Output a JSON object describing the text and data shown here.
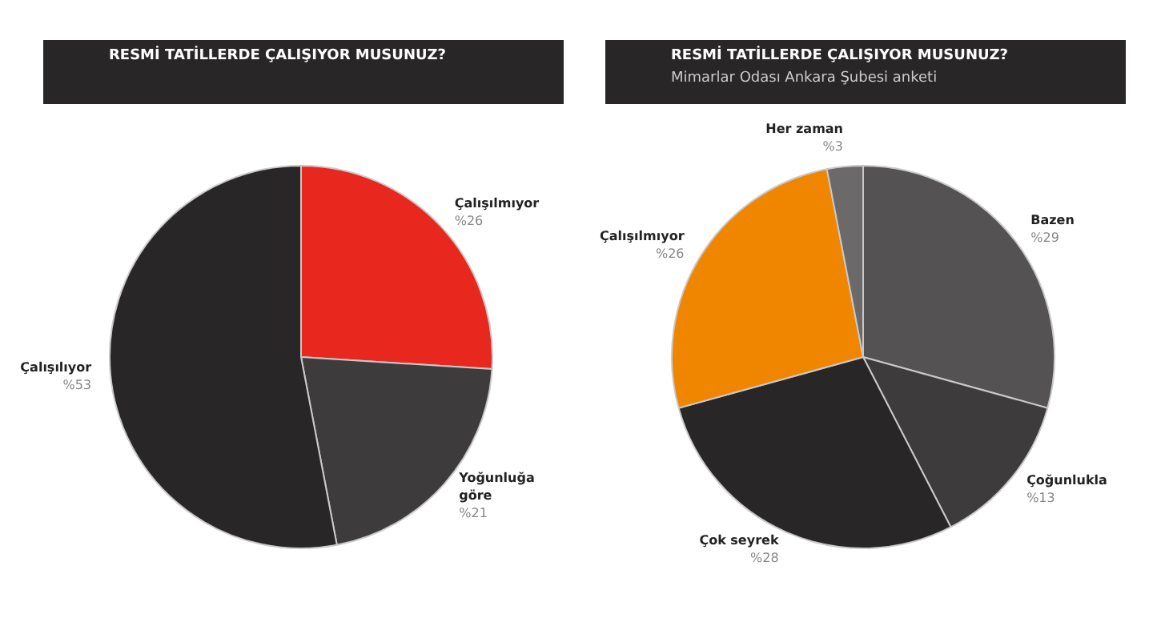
{
  "chart_data": [
    {
      "type": "pie",
      "title": "RESMİ TATİLLERDE ÇALIŞIYOR MUSUNUZ?",
      "categories": [
        "Çalışılmıyor",
        "Yoğunluğa göre",
        "Çalışılıyor"
      ],
      "values": [
        26,
        21,
        53
      ],
      "colors": [
        "#e8281e",
        "#3d3b3c",
        "#282627"
      ],
      "value_labels": [
        "%26",
        "%21",
        "%53"
      ]
    },
    {
      "type": "pie",
      "title": "RESMİ TATİLLERDE ÇALIŞIYOR MUSUNUZ?",
      "subtitle": "Mimarlar Odası Ankara Şubesi anketi",
      "categories": [
        "Bazen",
        "Çoğunlukla",
        "Çok seyrek",
        "Çalışılmıyor",
        "Her zaman"
      ],
      "values": [
        29,
        13,
        28,
        26,
        3
      ],
      "colors": [
        "#545253",
        "#3d3b3c",
        "#282627",
        "#f08500",
        "#6b6969"
      ],
      "value_labels": [
        "%29",
        "%13",
        "%28",
        "%26",
        "%3"
      ]
    }
  ]
}
